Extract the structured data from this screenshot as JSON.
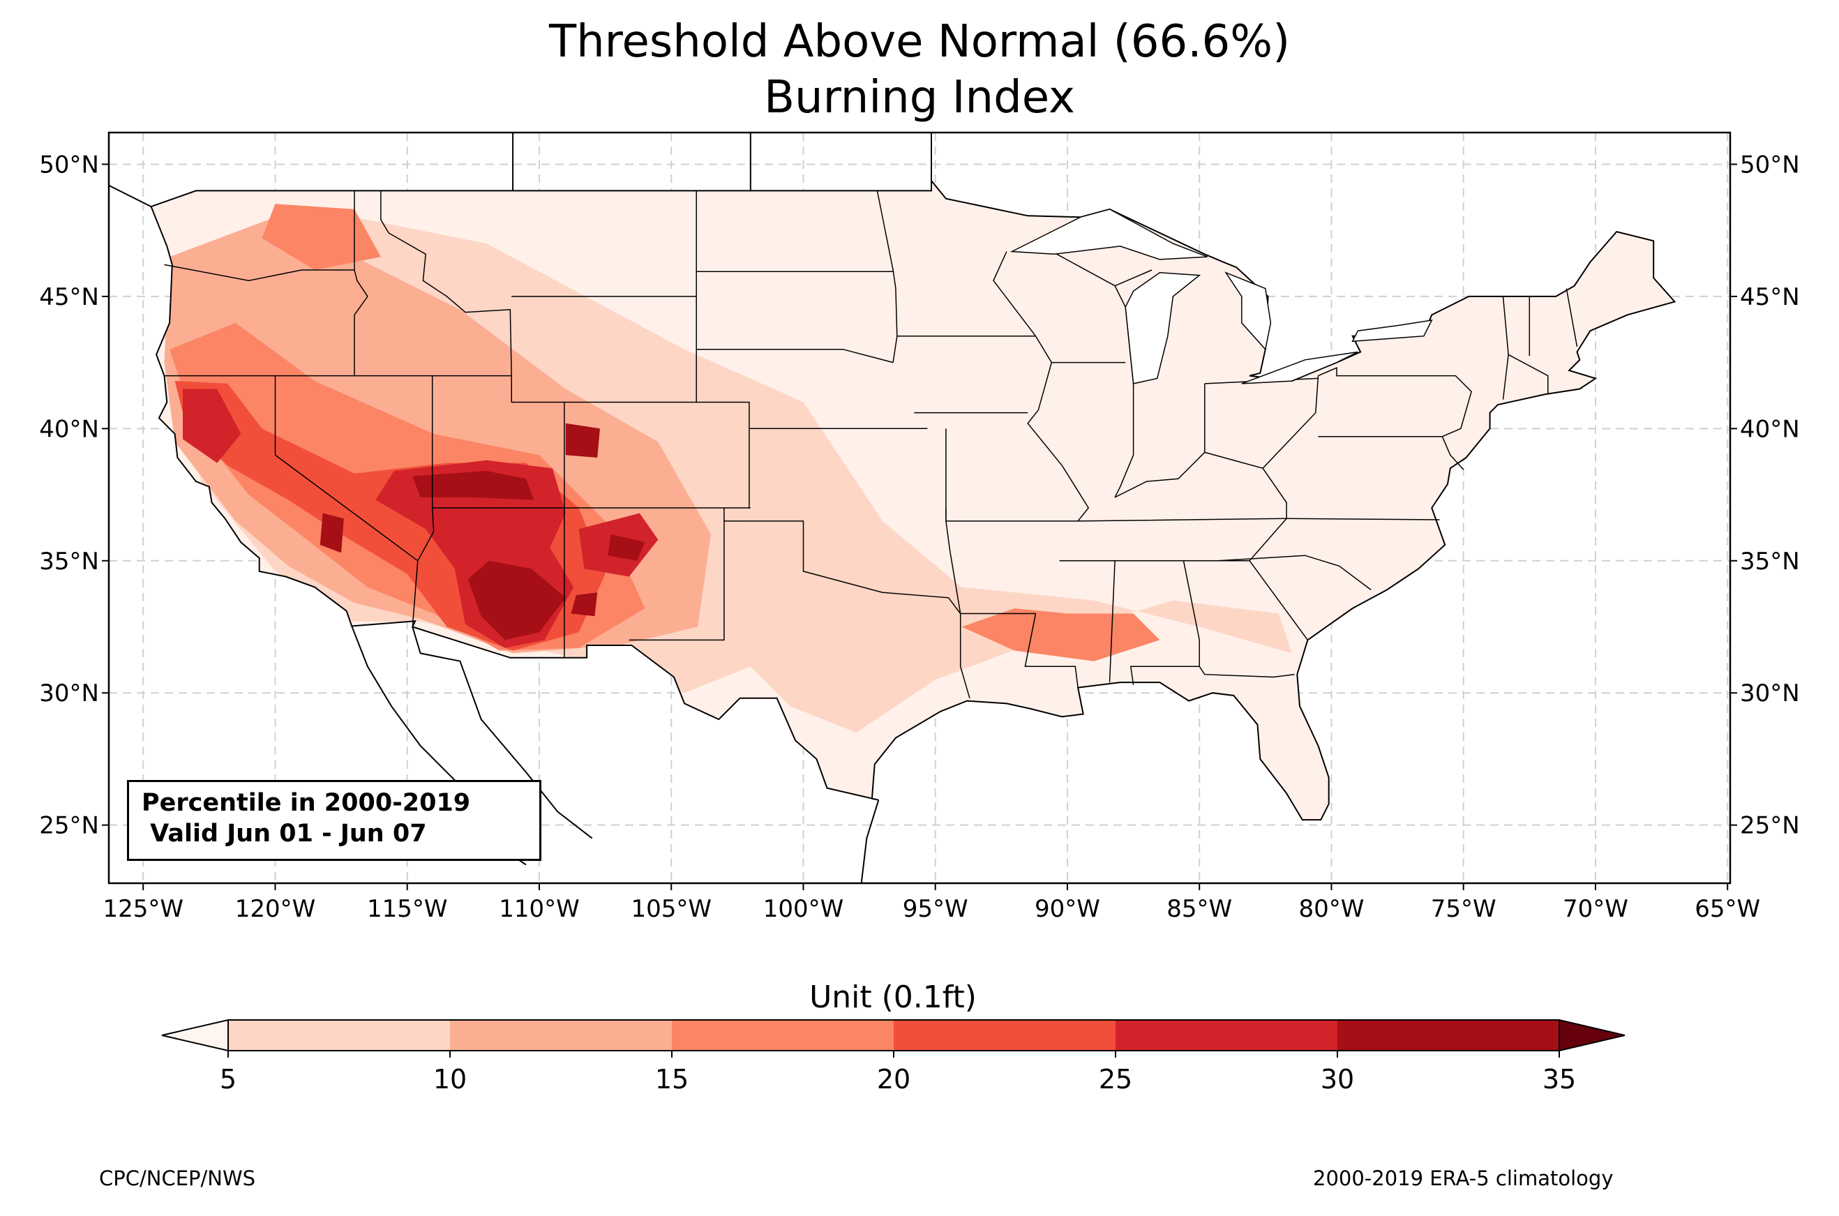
{
  "title_line1": "Threshold Above Normal (66.6%)",
  "title_line2": "Burning Index",
  "map": {
    "extent": {
      "lon_min": -126.3,
      "lon_max": -64.9,
      "lat_min": 22.8,
      "lat_max": 51.2
    },
    "lon_ticks": [
      "125°W",
      "120°W",
      "115°W",
      "110°W",
      "105°W",
      "100°W",
      "95°W",
      "90°W",
      "85°W",
      "80°W",
      "75°W",
      "70°W",
      "65°W"
    ],
    "lat_ticks": [
      "50°N",
      "45°N",
      "40°N",
      "35°N",
      "30°N",
      "25°N"
    ],
    "lon_values": [
      -125,
      -120,
      -115,
      -110,
      -105,
      -100,
      -95,
      -90,
      -85,
      -80,
      -75,
      -70,
      -65
    ],
    "lat_values": [
      50,
      45,
      40,
      35,
      30,
      25
    ],
    "gridlines": true,
    "base_fill_color": "#fff0ea",
    "regions": [
      {
        "level": "5-10",
        "color": "#fdd6c6",
        "poly": [
          [
            -122.5,
            47
          ],
          [
            -117,
            48
          ],
          [
            -112,
            47
          ],
          [
            -104.5,
            43
          ],
          [
            -100,
            41
          ],
          [
            -97,
            36.5
          ],
          [
            -94,
            34
          ],
          [
            -89,
            33.5
          ],
          [
            -85,
            32.5
          ],
          [
            -81.5,
            31.5
          ],
          [
            -82,
            33
          ],
          [
            -86,
            33.5
          ],
          [
            -91,
            32
          ],
          [
            -95,
            30.5
          ],
          [
            -98,
            28.5
          ],
          [
            -100.5,
            29.5
          ],
          [
            -102,
            31
          ],
          [
            -104.5,
            30
          ],
          [
            -109,
            31.4
          ],
          [
            -114.5,
            32.7
          ],
          [
            -117.2,
            32.7
          ],
          [
            -120,
            34.6
          ],
          [
            -122.8,
            38
          ],
          [
            -124,
            42
          ],
          [
            -124.5,
            46
          ]
        ]
      },
      {
        "level": "10-15",
        "color": "#fcae93",
        "poly": [
          [
            -124,
            46.5
          ],
          [
            -120,
            48
          ],
          [
            -116,
            46
          ],
          [
            -113,
            44.5
          ],
          [
            -109,
            41.5
          ],
          [
            -105.5,
            39.5
          ],
          [
            -103.5,
            36
          ],
          [
            -104,
            32.5
          ],
          [
            -107,
            31.8
          ],
          [
            -111,
            31.5
          ],
          [
            -114.5,
            32.8
          ],
          [
            -117,
            33.4
          ],
          [
            -119.5,
            34.8
          ],
          [
            -121.5,
            36.5
          ],
          [
            -123.8,
            39.5
          ],
          [
            -124.2,
            42.5
          ]
        ]
      },
      {
        "level": "15-20",
        "color": "#fb8565",
        "poly": [
          [
            -124,
            43
          ],
          [
            -121.5,
            44
          ],
          [
            -118.5,
            41.8
          ],
          [
            -114,
            39.8
          ],
          [
            -110,
            39
          ],
          [
            -107.5,
            36.5
          ],
          [
            -106,
            33.2
          ],
          [
            -108.5,
            31.7
          ],
          [
            -111.5,
            31.6
          ],
          [
            -114,
            33
          ],
          [
            -116.5,
            34
          ],
          [
            -118.8,
            35.8
          ],
          [
            -121,
            37.5
          ],
          [
            -123,
            40
          ]
        ]
      },
      {
        "level": "15-20",
        "color": "#fb8565",
        "poly": [
          [
            -94,
            32.5
          ],
          [
            -92,
            33.2
          ],
          [
            -90,
            33
          ],
          [
            -87.5,
            33
          ],
          [
            -86.5,
            32
          ],
          [
            -89,
            31.2
          ],
          [
            -92,
            31.6
          ]
        ]
      },
      {
        "level": "15-20",
        "color": "#fb8565",
        "poly": [
          [
            -120,
            48.5
          ],
          [
            -117,
            48.3
          ],
          [
            -116,
            46.5
          ],
          [
            -118.5,
            46
          ],
          [
            -120.5,
            47.2
          ]
        ]
      },
      {
        "level": "20-25",
        "color": "#f14f3a",
        "poly": [
          [
            -123.8,
            41.8
          ],
          [
            -121.8,
            41.7
          ],
          [
            -120.5,
            40
          ],
          [
            -117,
            38.3
          ],
          [
            -113.5,
            38.7
          ],
          [
            -110.5,
            38.7
          ],
          [
            -108.5,
            37
          ],
          [
            -107.5,
            34.5
          ],
          [
            -108.5,
            32.3
          ],
          [
            -111,
            31.6
          ],
          [
            -113.5,
            32.5
          ],
          [
            -115,
            34.5
          ],
          [
            -117.5,
            36
          ],
          [
            -119.5,
            37.3
          ],
          [
            -121.8,
            38.6
          ],
          [
            -123.4,
            40.2
          ]
        ]
      },
      {
        "level": "25-30",
        "color": "#d2222a",
        "poly": [
          [
            -123.5,
            41.5
          ],
          [
            -122.2,
            41.5
          ],
          [
            -121.3,
            39.8
          ],
          [
            -122.2,
            38.7
          ],
          [
            -123.5,
            39.6
          ]
        ]
      },
      {
        "level": "25-30",
        "color": "#d2222a",
        "poly": [
          [
            -115.5,
            38.4
          ],
          [
            -112,
            38.8
          ],
          [
            -109.5,
            38.5
          ],
          [
            -109,
            36.8
          ],
          [
            -109.6,
            35.5
          ],
          [
            -108.7,
            34
          ],
          [
            -109.8,
            32
          ],
          [
            -111.3,
            31.7
          ],
          [
            -112.8,
            32.6
          ],
          [
            -113.2,
            34.7
          ],
          [
            -114.3,
            36.2
          ],
          [
            -116.2,
            37.3
          ]
        ]
      },
      {
        "level": "25-30",
        "color": "#d2222a",
        "poly": [
          [
            -108.5,
            36.2
          ],
          [
            -106.2,
            36.8
          ],
          [
            -105.5,
            35.8
          ],
          [
            -106.6,
            34.4
          ],
          [
            -108.3,
            34.7
          ]
        ]
      },
      {
        "level": "30-35",
        "color": "#a50f15",
        "poly": [
          [
            -114.8,
            38.2
          ],
          [
            -112,
            38.4
          ],
          [
            -110.5,
            38.1
          ],
          [
            -110.2,
            37.3
          ],
          [
            -112.6,
            37.4
          ],
          [
            -114.5,
            37.4
          ]
        ]
      },
      {
        "level": "30-35",
        "color": "#a50f15",
        "poly": [
          [
            -111.9,
            35
          ],
          [
            -110.3,
            34.7
          ],
          [
            -109,
            33.6
          ],
          [
            -110,
            32.3
          ],
          [
            -111.3,
            32
          ],
          [
            -112.2,
            32.9
          ],
          [
            -112.7,
            34.3
          ]
        ]
      },
      {
        "level": "30-35",
        "color": "#a50f15",
        "poly": [
          [
            -118.2,
            36.8
          ],
          [
            -117.4,
            36.6
          ],
          [
            -117.5,
            35.3
          ],
          [
            -118.3,
            35.6
          ]
        ]
      },
      {
        "level": "30-35",
        "color": "#a50f15",
        "poly": [
          [
            -109,
            40.2
          ],
          [
            -107.7,
            40
          ],
          [
            -107.8,
            38.9
          ],
          [
            -109,
            39
          ]
        ]
      },
      {
        "level": "30-35",
        "color": "#a50f15",
        "poly": [
          [
            -107.3,
            36
          ],
          [
            -106,
            35.7
          ],
          [
            -106.3,
            35
          ],
          [
            -107.4,
            35.2
          ]
        ]
      },
      {
        "level": "30-35",
        "color": "#a50f15",
        "poly": [
          [
            -108.6,
            33.7
          ],
          [
            -107.8,
            33.8
          ],
          [
            -107.9,
            32.9
          ],
          [
            -108.8,
            33
          ]
        ]
      }
    ],
    "infobox_line1": "Percentile in 2000-2019",
    "infobox_line2": " Valid Jun 01 - Jun 07"
  },
  "colorbar": {
    "label": "Unit (0.1ft)",
    "ticks": [
      "5",
      "10",
      "15",
      "20",
      "25",
      "30",
      "35"
    ],
    "colors": [
      "#fdd6c6",
      "#fcae93",
      "#fb8565",
      "#f14f3a",
      "#d2222a",
      "#a50f15"
    ],
    "under_color": "#fff5f0",
    "over_color": "#67000d"
  },
  "footer_left": "CPC/NCEP/NWS",
  "footer_right": "2000-2019 ERA-5 climatology"
}
